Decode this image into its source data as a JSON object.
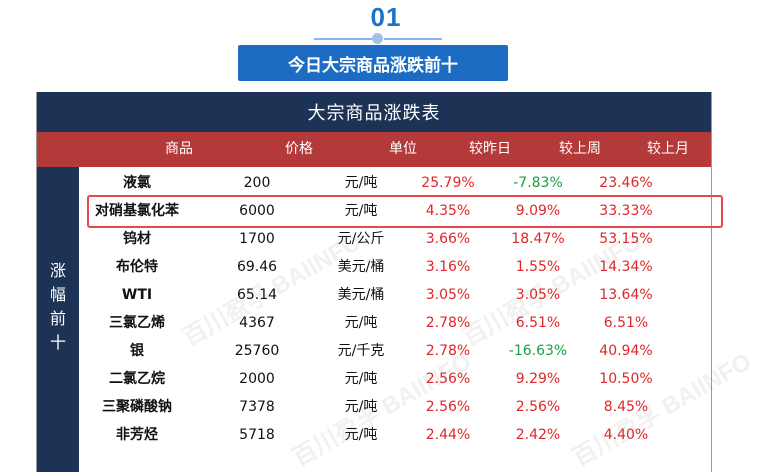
{
  "header": {
    "section_number": "01",
    "banner_title": "今日大宗商品涨跌前十"
  },
  "table": {
    "title": "大宗商品涨跌表",
    "side_label": [
      "涨",
      "幅",
      "前",
      "十"
    ],
    "columns": [
      "商品",
      "价格",
      "单位",
      "较昨日",
      "较上周",
      "较上月"
    ],
    "rows": [
      {
        "name": "液氯",
        "price": "200",
        "unit": "元/吨",
        "day": "25.79%",
        "week": "-7.83%",
        "month": "23.46%",
        "day_dir": "up",
        "week_dir": "down",
        "month_dir": "up"
      },
      {
        "name": "对硝基氯化苯",
        "price": "6000",
        "unit": "元/吨",
        "day": "4.35%",
        "week": "9.09%",
        "month": "33.33%",
        "day_dir": "up",
        "week_dir": "up",
        "month_dir": "up"
      },
      {
        "name": "钨材",
        "price": "1700",
        "unit": "元/公斤",
        "day": "3.66%",
        "week": "18.47%",
        "month": "53.15%",
        "day_dir": "up",
        "week_dir": "up",
        "month_dir": "up"
      },
      {
        "name": "布伦特",
        "price": "69.46",
        "unit": "美元/桶",
        "day": "3.16%",
        "week": "1.55%",
        "month": "14.34%",
        "day_dir": "up",
        "week_dir": "up",
        "month_dir": "up"
      },
      {
        "name": "WTI",
        "price": "65.14",
        "unit": "美元/桶",
        "day": "3.05%",
        "week": "3.05%",
        "month": "13.64%",
        "day_dir": "up",
        "week_dir": "up",
        "month_dir": "up"
      },
      {
        "name": "三氯乙烯",
        "price": "4367",
        "unit": "元/吨",
        "day": "2.78%",
        "week": "6.51%",
        "month": "6.51%",
        "day_dir": "up",
        "week_dir": "up",
        "month_dir": "up"
      },
      {
        "name": "银",
        "price": "25760",
        "unit": "元/千克",
        "day": "2.78%",
        "week": "-16.63%",
        "month": "40.94%",
        "day_dir": "up",
        "week_dir": "down",
        "month_dir": "up"
      },
      {
        "name": "二氯乙烷",
        "price": "2000",
        "unit": "元/吨",
        "day": "2.56%",
        "week": "9.29%",
        "month": "10.50%",
        "day_dir": "up",
        "week_dir": "up",
        "month_dir": "up"
      },
      {
        "name": "三聚磷酸钠",
        "price": "7378",
        "unit": "元/吨",
        "day": "2.56%",
        "week": "2.56%",
        "month": "8.45%",
        "day_dir": "up",
        "week_dir": "up",
        "month_dir": "up"
      },
      {
        "name": "非芳烃",
        "price": "5718",
        "unit": "元/吨",
        "day": "2.44%",
        "week": "2.42%",
        "month": "4.40%",
        "day_dir": "up",
        "week_dir": "up",
        "month_dir": "up"
      }
    ],
    "highlighted_row_index": 1
  },
  "watermark": "百川盈孚 BAIINFO",
  "colors": {
    "banner_blue": "#1d6cc4",
    "navy": "#1c3356",
    "header_red": "#b43a3a",
    "up_red": "#e0262a",
    "down_green": "#18a146",
    "highlight_border": "#e8474c"
  }
}
